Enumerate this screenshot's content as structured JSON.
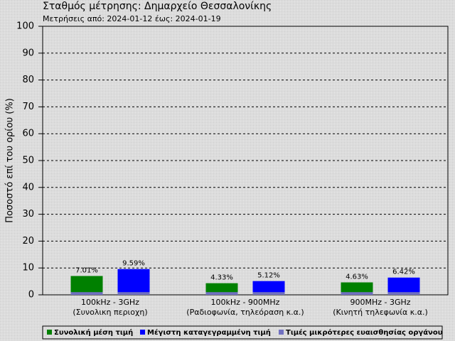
{
  "chart_data": {
    "type": "bar",
    "title": "Σταθμός μέτρησης: Δημαρχείο Θεσσαλονίκης",
    "subtitle": "Μετρήσεις από: 2024-01-12 έως: 2024-01-19",
    "y_label": "Ποσοστό επί του ορίου (%)",
    "categories": [
      [
        "100kHz - 3GHz",
        "(Συνολικη περιοχη)"
      ],
      [
        "100kHz - 900MHz",
        "(Ραδιοφωνία, τηλεόραση κ.α.)"
      ],
      [
        "900MHz - 3GHz",
        "(Κινητή τηλεφωνία κ.α.)"
      ]
    ],
    "series": [
      {
        "name": "Συνολική μέση τιμή",
        "color": "#008000",
        "values": [
          7.01,
          4.33,
          4.63
        ],
        "value_labels": [
          "7.01%",
          "4.33%",
          "4.63%"
        ]
      },
      {
        "name": "Μέγιστη καταγεγραμμένη τιμή",
        "color": "#0000ff",
        "values": [
          9.59,
          5.12,
          6.42
        ],
        "value_labels": [
          "9.59%",
          "5.12%",
          "6.42%"
        ]
      },
      {
        "name": "Τιμές μικρότερες ευαισθησίας οργάνου",
        "color": "#7070c0",
        "values": [
          1,
          1,
          1
        ]
      }
    ],
    "ylim": [
      0,
      100
    ],
    "yticks": [
      0,
      10,
      20,
      30,
      40,
      50,
      60,
      70,
      80,
      90,
      100
    ],
    "grid": true
  }
}
